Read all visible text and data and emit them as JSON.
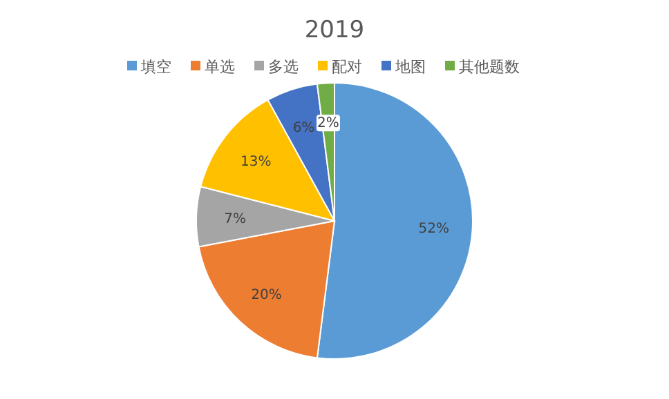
{
  "chart_data": {
    "type": "pie",
    "title": "2019",
    "categories": [
      "填空",
      "单选",
      "多选",
      "配对",
      "地图",
      "其他题数"
    ],
    "values": [
      52,
      20,
      7,
      13,
      6,
      2
    ],
    "colors": [
      "#5b9bd5",
      "#ed7d31",
      "#a5a5a5",
      "#ffc000",
      "#4472c4",
      "#70ad47"
    ],
    "value_labels": [
      "52%",
      "20%",
      "7%",
      "13%",
      "6%",
      "2%"
    ],
    "legend": "top"
  }
}
